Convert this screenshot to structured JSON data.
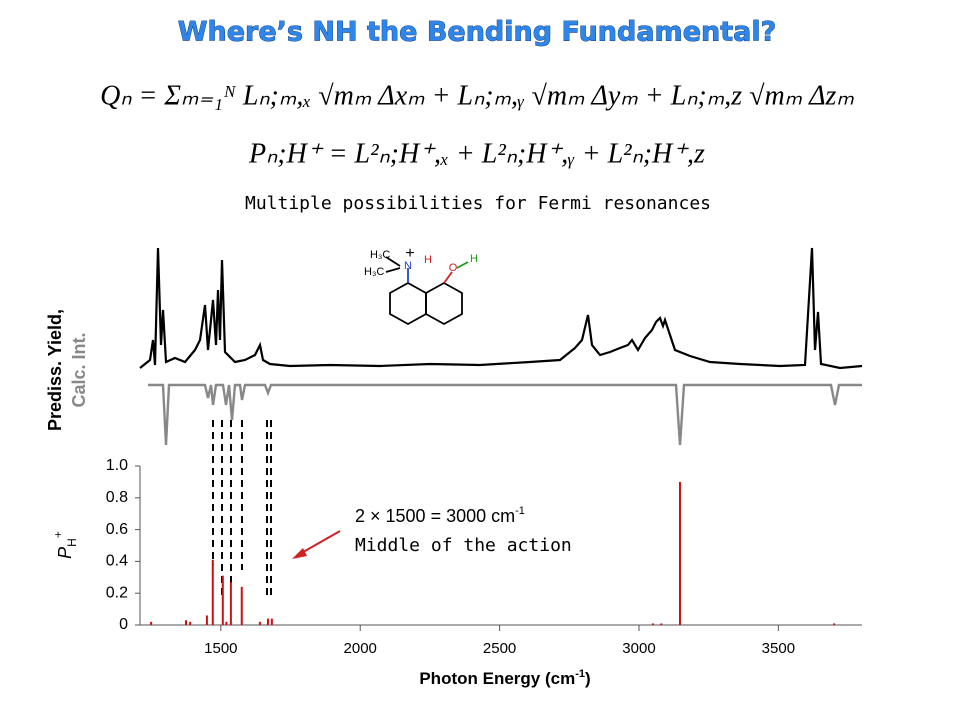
{
  "header": {
    "title": "Where’s NH the Bending Fundamental?"
  },
  "equations": [
    "Qₙ = Σₘ₌₁ᴺ Lₙ;ₘ,ₓ √mₘ Δxₘ + Lₙ;ₘ,ᵧ √mₘ Δyₘ + Lₙ;ₘ,z √mₘ Δzₘ",
    "Pₙ;H⁺ = L²ₙ;H⁺,ₓ + L²ₙ;H⁺,ᵧ + L²ₙ;H⁺,z"
  ],
  "subtitle": "Multiple possibilities for Fermi resonances",
  "upper_panel": {
    "label_top": "Prediss. Yield,",
    "label_bottom": "Calc. Int."
  },
  "molecule": {
    "methyl_top": "H₃C",
    "methyl_bottom": "H₃C",
    "nitrogen": "N",
    "charge": "+",
    "bridging_h": "H",
    "oxygen": "O",
    "hydroxyl_h": "H"
  },
  "chart_data": {
    "type": "bar",
    "color": "#cc1111",
    "x": [
      1250,
      1375,
      1390,
      1450,
      1471,
      1507,
      1520,
      1536,
      1575,
      1640,
      1669,
      1683,
      3050,
      3080,
      3147,
      3700
    ],
    "values": [
      0.02,
      0.03,
      0.02,
      0.06,
      0.41,
      0.31,
      0.02,
      0.27,
      0.24,
      0.02,
      0.04,
      0.04,
      0.01,
      0.01,
      0.9,
      0.01
    ],
    "xlim": [
      1210,
      3800
    ],
    "ylim": [
      0,
      1
    ],
    "xticks": [
      1500,
      2000,
      2500,
      3000,
      3500
    ],
    "yticks": [
      0,
      0.2,
      0.4,
      0.6,
      0.8,
      {
        "value": 1,
        "label": "1.0"
      }
    ],
    "xlabel": "Photon Energy (cm",
    "xlabel_sup": "-1",
    "xlabel_end": ")",
    "ylabel": "P",
    "ylabel_sub": "H",
    "ylabel_sup": "+",
    "annotations": [
      {
        "text": "2 × 1500 = 3000 cm",
        "sup": "-1"
      },
      {
        "text": "Middle of the action"
      }
    ]
  }
}
